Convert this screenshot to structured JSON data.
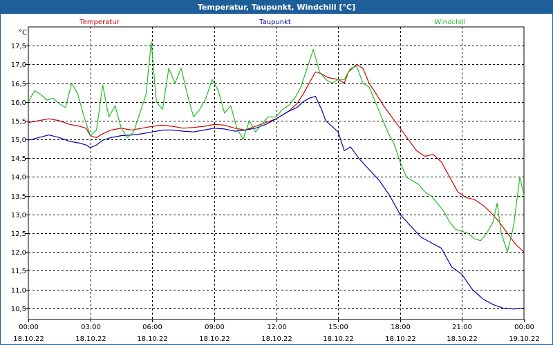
{
  "window": {
    "title": "Temperatur, Taupunkt, Windchill [°C]"
  },
  "colors": {
    "title_bar": "#1f5f99",
    "temperature": "#cc0000",
    "dewpoint": "#0000aa",
    "windchill": "#22bb22",
    "grid": "#000000"
  },
  "chart_data": {
    "type": "line",
    "title": "Temperatur, Taupunkt, Windchill [°C]",
    "ylabel": "°C",
    "xlabel": "",
    "xlim": [
      0,
      24
    ],
    "ylim": [
      10.2,
      18.0
    ],
    "grid": true,
    "yticks": [
      "10,5",
      "11,0",
      "11,5",
      "12,0",
      "12,5",
      "13,0",
      "13,5",
      "14,0",
      "14,5",
      "15,0",
      "15,5",
      "16,0",
      "16,5",
      "17,0",
      "17,5"
    ],
    "ytick_values": [
      10.5,
      11.0,
      11.5,
      12.0,
      12.5,
      13.0,
      13.5,
      14.0,
      14.5,
      15.0,
      15.5,
      16.0,
      16.5,
      17.0,
      17.5
    ],
    "xticks": [
      {
        "time": "00:00",
        "date": "18.10.22",
        "x": 0
      },
      {
        "time": "03:00",
        "date": "18.10.22",
        "x": 3
      },
      {
        "time": "06:00",
        "date": "18.10.22",
        "x": 6
      },
      {
        "time": "09:00",
        "date": "18.10.22",
        "x": 9
      },
      {
        "time": "12:00",
        "date": "18.10.22",
        "x": 12
      },
      {
        "time": "15:00",
        "date": "18.10.22",
        "x": 15
      },
      {
        "time": "18:00",
        "date": "18.10.22",
        "x": 18
      },
      {
        "time": "21:00",
        "date": "18.10.22",
        "x": 21
      },
      {
        "time": "00:00",
        "date": "19.10.22",
        "x": 24
      }
    ],
    "series": [
      {
        "name": "Temperatur",
        "color": "#cc0000",
        "points": [
          [
            0,
            15.45
          ],
          [
            0.5,
            15.5
          ],
          [
            1,
            15.55
          ],
          [
            1.5,
            15.5
          ],
          [
            2,
            15.4
          ],
          [
            2.5,
            15.35
          ],
          [
            2.8,
            15.3
          ],
          [
            3,
            15.1
          ],
          [
            3.3,
            15.05
          ],
          [
            3.6,
            15.15
          ],
          [
            4,
            15.25
          ],
          [
            4.5,
            15.3
          ],
          [
            5,
            15.25
          ],
          [
            5.5,
            15.3
          ],
          [
            6,
            15.35
          ],
          [
            6.5,
            15.38
          ],
          [
            7,
            15.35
          ],
          [
            7.5,
            15.3
          ],
          [
            8,
            15.32
          ],
          [
            8.5,
            15.35
          ],
          [
            9,
            15.4
          ],
          [
            9.5,
            15.38
          ],
          [
            10,
            15.3
          ],
          [
            10.5,
            15.25
          ],
          [
            11,
            15.35
          ],
          [
            11.5,
            15.45
          ],
          [
            12,
            15.55
          ],
          [
            12.3,
            15.65
          ],
          [
            12.6,
            15.75
          ],
          [
            13,
            15.95
          ],
          [
            13.3,
            16.2
          ],
          [
            13.6,
            16.5
          ],
          [
            13.9,
            16.8
          ],
          [
            14.2,
            16.75
          ],
          [
            14.5,
            16.65
          ],
          [
            15,
            16.6
          ],
          [
            15.3,
            16.5
          ],
          [
            15.5,
            16.8
          ],
          [
            15.9,
            17.0
          ],
          [
            16.2,
            16.9
          ],
          [
            16.5,
            16.5
          ],
          [
            16.8,
            16.25
          ],
          [
            17.2,
            15.9
          ],
          [
            17.6,
            15.6
          ],
          [
            18,
            15.3
          ],
          [
            18.4,
            15.0
          ],
          [
            18.8,
            14.7
          ],
          [
            19.2,
            14.55
          ],
          [
            19.6,
            14.6
          ],
          [
            20,
            14.4
          ],
          [
            20.4,
            14.0
          ],
          [
            20.8,
            13.6
          ],
          [
            21.2,
            13.45
          ],
          [
            21.6,
            13.4
          ],
          [
            22,
            13.25
          ],
          [
            22.4,
            13.05
          ],
          [
            22.8,
            12.8
          ],
          [
            23.2,
            12.5
          ],
          [
            23.6,
            12.2
          ],
          [
            24,
            12.0
          ]
        ]
      },
      {
        "name": "Taupunkt",
        "color": "#0000aa",
        "points": [
          [
            0,
            14.98
          ],
          [
            0.5,
            15.05
          ],
          [
            1,
            15.12
          ],
          [
            1.5,
            15.05
          ],
          [
            2,
            14.95
          ],
          [
            2.5,
            14.9
          ],
          [
            2.8,
            14.85
          ],
          [
            3,
            14.78
          ],
          [
            3.3,
            14.85
          ],
          [
            3.6,
            14.98
          ],
          [
            4,
            15.05
          ],
          [
            4.5,
            15.1
          ],
          [
            5,
            15.12
          ],
          [
            5.5,
            15.15
          ],
          [
            6,
            15.2
          ],
          [
            6.5,
            15.25
          ],
          [
            7,
            15.25
          ],
          [
            7.5,
            15.22
          ],
          [
            8,
            15.2
          ],
          [
            8.5,
            15.25
          ],
          [
            9,
            15.3
          ],
          [
            9.5,
            15.28
          ],
          [
            10,
            15.22
          ],
          [
            10.5,
            15.25
          ],
          [
            11,
            15.3
          ],
          [
            11.5,
            15.4
          ],
          [
            12,
            15.55
          ],
          [
            12.3,
            15.65
          ],
          [
            12.6,
            15.75
          ],
          [
            13,
            15.85
          ],
          [
            13.3,
            16.0
          ],
          [
            13.6,
            16.1
          ],
          [
            13.9,
            16.15
          ],
          [
            14.2,
            15.8
          ],
          [
            14.4,
            15.5
          ],
          [
            14.7,
            15.35
          ],
          [
            15,
            15.2
          ],
          [
            15.3,
            14.7
          ],
          [
            15.6,
            14.8
          ],
          [
            16,
            14.5
          ],
          [
            16.5,
            14.2
          ],
          [
            17,
            13.9
          ],
          [
            17.5,
            13.5
          ],
          [
            18,
            13.0
          ],
          [
            18.5,
            12.7
          ],
          [
            19,
            12.4
          ],
          [
            19.5,
            12.25
          ],
          [
            20,
            12.1
          ],
          [
            20.5,
            11.6
          ],
          [
            21,
            11.4
          ],
          [
            21.5,
            11.0
          ],
          [
            22,
            10.75
          ],
          [
            22.5,
            10.6
          ],
          [
            23,
            10.5
          ],
          [
            23.5,
            10.48
          ],
          [
            24,
            10.5
          ]
        ]
      },
      {
        "name": "Windchill",
        "color": "#22bb22",
        "points": [
          [
            0,
            16.0
          ],
          [
            0.3,
            16.3
          ],
          [
            0.6,
            16.2
          ],
          [
            0.9,
            16.05
          ],
          [
            1.2,
            16.1
          ],
          [
            1.5,
            15.95
          ],
          [
            1.8,
            15.85
          ],
          [
            2.1,
            16.5
          ],
          [
            2.4,
            16.2
          ],
          [
            2.7,
            15.6
          ],
          [
            3.0,
            15.1
          ],
          [
            3.3,
            15.25
          ],
          [
            3.6,
            16.45
          ],
          [
            3.9,
            15.6
          ],
          [
            4.2,
            15.9
          ],
          [
            4.5,
            15.3
          ],
          [
            4.8,
            15.05
          ],
          [
            5.1,
            15.2
          ],
          [
            5.4,
            15.7
          ],
          [
            5.7,
            16.2
          ],
          [
            5.95,
            17.6
          ],
          [
            6.2,
            16.0
          ],
          [
            6.5,
            15.8
          ],
          [
            6.8,
            16.9
          ],
          [
            7.1,
            16.5
          ],
          [
            7.4,
            16.9
          ],
          [
            7.7,
            16.2
          ],
          [
            8.0,
            15.6
          ],
          [
            8.3,
            15.8
          ],
          [
            8.6,
            16.1
          ],
          [
            8.9,
            16.6
          ],
          [
            9.2,
            16.3
          ],
          [
            9.5,
            15.7
          ],
          [
            9.8,
            15.9
          ],
          [
            10.1,
            15.3
          ],
          [
            10.4,
            15.0
          ],
          [
            10.7,
            15.5
          ],
          [
            11.0,
            15.2
          ],
          [
            11.3,
            15.4
          ],
          [
            11.6,
            15.6
          ],
          [
            12.0,
            15.6
          ],
          [
            12.3,
            15.8
          ],
          [
            12.6,
            15.9
          ],
          [
            12.9,
            16.1
          ],
          [
            13.2,
            16.4
          ],
          [
            13.5,
            16.9
          ],
          [
            13.8,
            17.4
          ],
          [
            14.1,
            16.8
          ],
          [
            14.4,
            16.6
          ],
          [
            14.7,
            16.5
          ],
          [
            15.0,
            16.6
          ],
          [
            15.3,
            16.6
          ],
          [
            15.6,
            16.9
          ],
          [
            15.9,
            16.95
          ],
          [
            16.2,
            16.5
          ],
          [
            16.5,
            16.4
          ],
          [
            16.8,
            16.0
          ],
          [
            17.1,
            15.6
          ],
          [
            17.4,
            15.2
          ],
          [
            17.7,
            14.9
          ],
          [
            18.0,
            14.4
          ],
          [
            18.3,
            14.0
          ],
          [
            18.6,
            13.9
          ],
          [
            18.9,
            13.8
          ],
          [
            19.2,
            13.6
          ],
          [
            19.5,
            13.5
          ],
          [
            19.8,
            13.3
          ],
          [
            20.1,
            13.1
          ],
          [
            20.4,
            12.8
          ],
          [
            20.7,
            12.6
          ],
          [
            21.0,
            12.55
          ],
          [
            21.3,
            12.5
          ],
          [
            21.6,
            12.35
          ],
          [
            21.9,
            12.3
          ],
          [
            22.2,
            12.5
          ],
          [
            22.5,
            12.8
          ],
          [
            22.7,
            13.3
          ],
          [
            22.9,
            12.5
          ],
          [
            23.2,
            12.0
          ],
          [
            23.5,
            12.7
          ],
          [
            23.8,
            14.0
          ],
          [
            24.0,
            13.5
          ]
        ]
      }
    ]
  }
}
